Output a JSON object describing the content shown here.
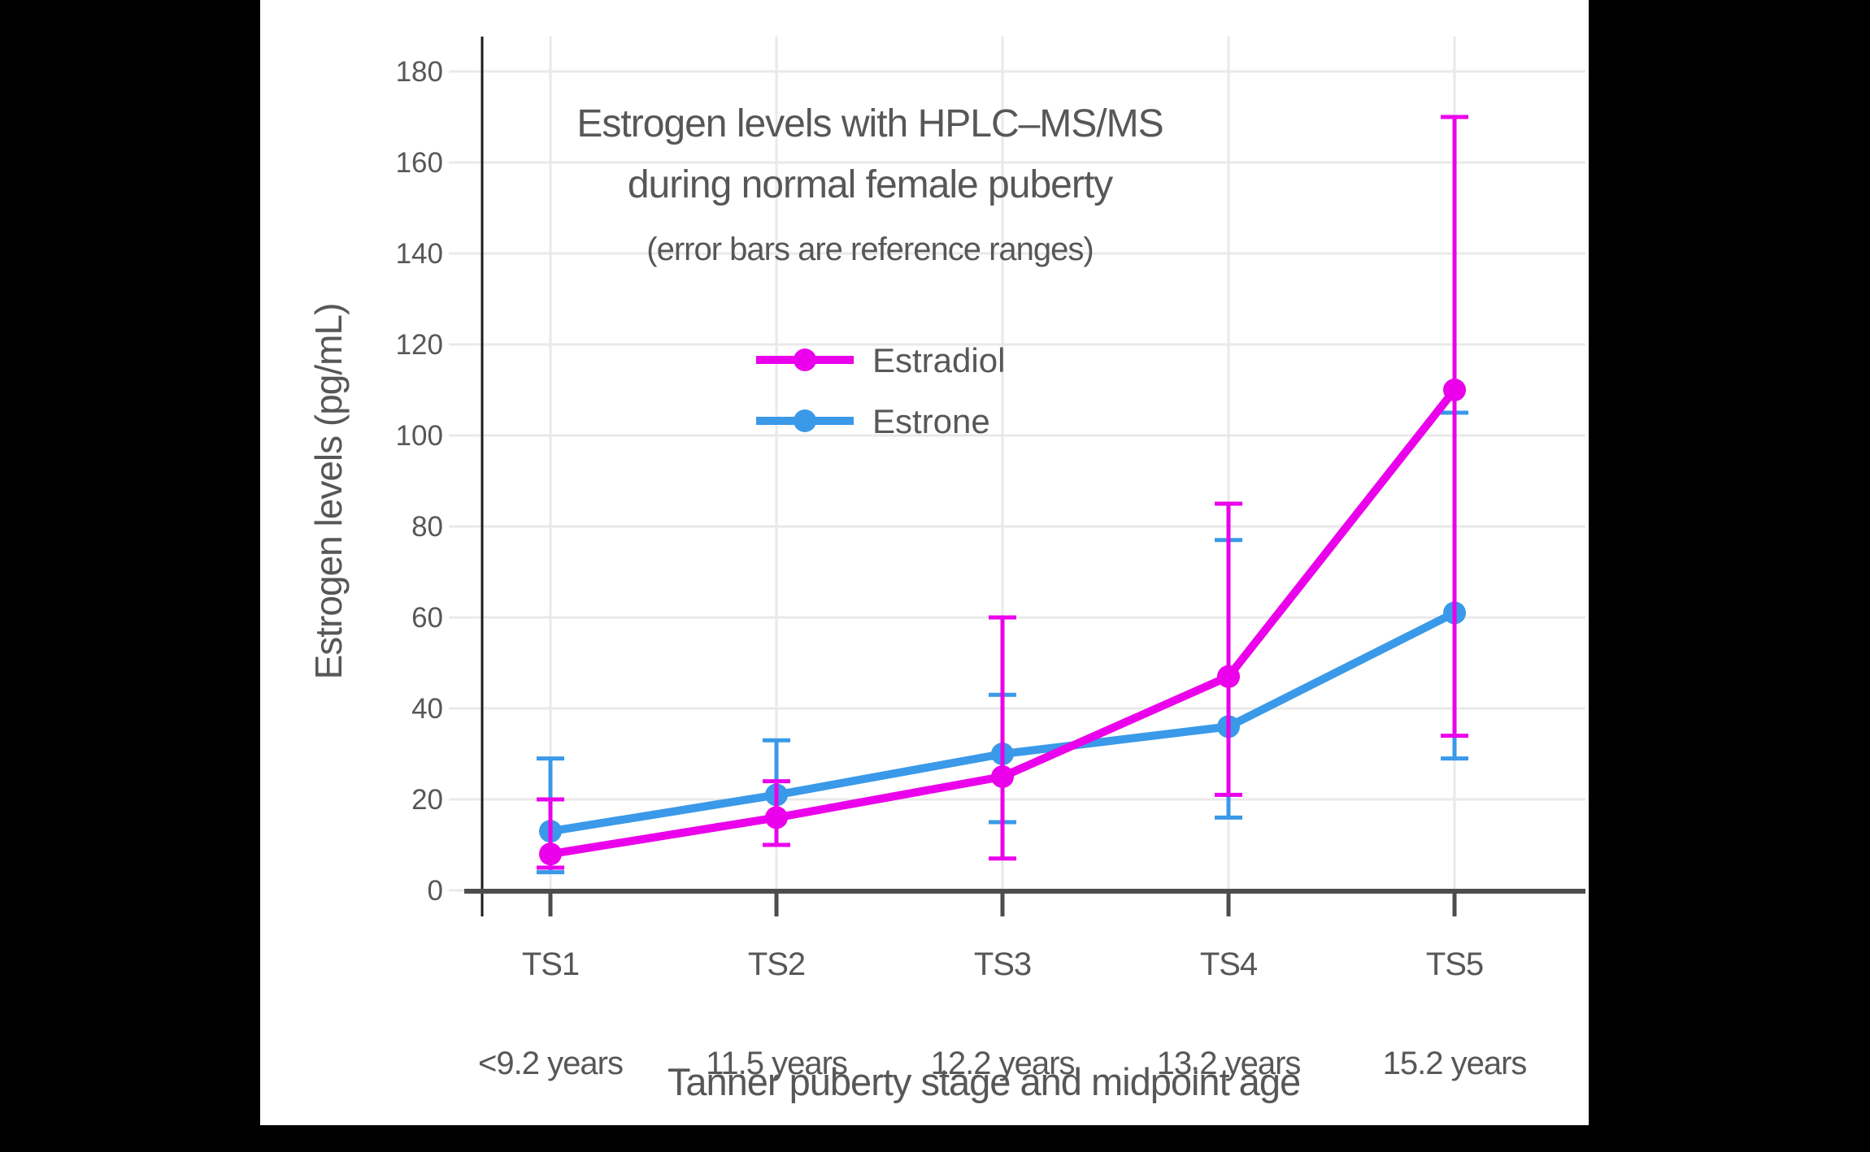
{
  "app": {
    "background": "#000000",
    "panel_background": "#ffffff"
  },
  "chart_data": {
    "type": "line",
    "title": "Estrogen levels with HPLC–MS/MS during normal female puberty",
    "title_lines": [
      "Estrogen levels with HPLC–MS/MS",
      "during normal female puberty"
    ],
    "subtitle": "(error bars are reference ranges)",
    "xlabel": "Tanner puberty stage and midpoint age",
    "ylabel": "Estrogen levels (pg/mL)",
    "categories": [
      "TS1",
      "TS2",
      "TS3",
      "TS4",
      "TS5"
    ],
    "category_sublabels": [
      "<9.2 years",
      "11.5 years",
      "12.2 years",
      "13.2 years",
      "15.2 years"
    ],
    "yticks": [
      0,
      20,
      40,
      60,
      80,
      100,
      120,
      140,
      160,
      180
    ],
    "ylim": [
      0,
      187.5
    ],
    "grid": true,
    "legend_position": "upper-left-inside",
    "error_bar_meaning": "reference ranges",
    "series": [
      {
        "name": "Estradiol",
        "color": "#ea00ea",
        "values": [
          8,
          16,
          25,
          47,
          110
        ],
        "low": [
          5,
          10,
          7,
          21,
          34
        ],
        "high": [
          20,
          24,
          60,
          85,
          170
        ]
      },
      {
        "name": "Estrone",
        "color": "#3a99e8",
        "values": [
          13,
          21,
          30,
          36,
          61
        ],
        "low": [
          4,
          10,
          15,
          16,
          29
        ],
        "high": [
          29,
          33,
          43,
          77,
          105
        ]
      }
    ],
    "colors": {
      "text": "#575757",
      "grid": "#e9e9e9",
      "x_axis": "#4d4d4d",
      "y_axis": "#1a1a1a"
    }
  }
}
